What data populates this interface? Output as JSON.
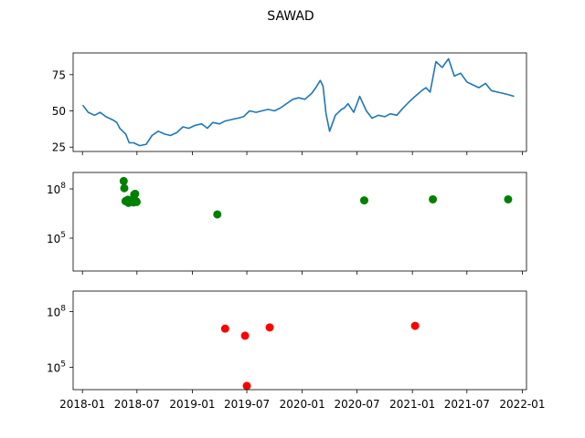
{
  "title": "SAWAD",
  "colors": {
    "price": "#1f77b4",
    "buy": "#008000",
    "sell": "#ff0000",
    "axis": "#000000"
  },
  "x_tick_labels": [
    "2018-01",
    "2018-07",
    "2019-01",
    "2019-07",
    "2020-01",
    "2020-07",
    "2021-01",
    "2021-07",
    "2022-01"
  ],
  "chart_data": [
    {
      "type": "line",
      "x_type": "date",
      "xlim": [
        "2017-12-01",
        "2022-01-15"
      ],
      "ylim": [
        22,
        90
      ],
      "yticks": [
        25,
        50,
        75
      ],
      "series": [
        {
          "x": [
            "2018-01-02",
            "2018-01-20",
            "2018-02-10",
            "2018-03-01",
            "2018-03-20",
            "2018-04-10",
            "2018-04-25",
            "2018-05-05",
            "2018-05-15",
            "2018-05-25",
            "2018-06-05",
            "2018-06-20",
            "2018-07-10",
            "2018-08-01",
            "2018-08-20",
            "2018-09-10",
            "2018-10-01",
            "2018-10-20",
            "2018-11-10",
            "2018-12-01",
            "2018-12-20",
            "2019-01-10",
            "2019-02-01",
            "2019-02-20",
            "2019-03-10",
            "2019-04-01",
            "2019-04-20",
            "2019-05-10",
            "2019-06-01",
            "2019-06-20",
            "2019-07-10",
            "2019-08-01",
            "2019-08-20",
            "2019-09-10",
            "2019-10-01",
            "2019-10-20",
            "2019-11-10",
            "2019-12-01",
            "2019-12-20",
            "2020-01-10",
            "2020-02-01",
            "2020-02-15",
            "2020-03-01",
            "2020-03-10",
            "2020-03-20",
            "2020-04-01",
            "2020-04-20",
            "2020-05-10",
            "2020-05-20",
            "2020-06-01",
            "2020-06-20",
            "2020-07-10",
            "2020-08-01",
            "2020-08-20",
            "2020-09-10",
            "2020-10-01",
            "2020-10-20",
            "2020-11-10",
            "2020-12-01",
            "2020-12-20",
            "2021-01-10",
            "2021-02-01",
            "2021-02-15",
            "2021-03-01",
            "2021-03-20",
            "2021-04-10",
            "2021-05-01",
            "2021-05-20",
            "2021-06-10",
            "2021-07-01",
            "2021-07-20",
            "2021-08-10",
            "2021-09-01",
            "2021-09-20",
            "2021-10-10",
            "2021-11-01",
            "2021-11-20",
            "2021-12-05"
          ],
          "y": [
            54,
            49,
            47,
            49,
            46,
            44,
            42,
            38,
            36,
            34,
            28,
            28,
            26,
            27,
            33,
            36,
            34,
            33,
            35,
            39,
            38,
            40,
            41,
            38,
            42,
            41,
            43,
            44,
            45,
            46,
            50,
            49,
            50,
            51,
            50,
            52,
            55,
            58,
            59,
            58,
            62,
            66,
            71,
            67,
            48,
            36,
            47,
            51,
            52,
            55,
            49,
            60,
            50,
            45,
            47,
            46,
            48,
            47,
            52,
            56,
            60,
            64,
            66,
            63,
            84,
            80,
            86,
            74,
            76,
            70,
            68,
            66,
            69,
            64,
            63,
            62,
            61,
            60
          ]
        }
      ]
    },
    {
      "type": "scatter",
      "x_type": "date",
      "yscale": "log",
      "xlim": [
        "2017-12-01",
        "2022-01-15"
      ],
      "ylim_exp": [
        3,
        9
      ],
      "yticks_exp": [
        5,
        8
      ],
      "series": [
        {
          "x": [
            "2018-05-18",
            "2018-05-20",
            "2018-05-24",
            "2018-06-01",
            "2018-06-03",
            "2018-06-08",
            "2018-06-12",
            "2018-06-16",
            "2018-06-20",
            "2018-06-22",
            "2018-06-25",
            "2018-06-28",
            "2018-06-30",
            "2019-03-25",
            "2020-07-25",
            "2021-03-10",
            "2021-11-15"
          ],
          "y": [
            300000000,
            110000000,
            18000000,
            22000000,
            14000000,
            20000000,
            19000000,
            16000000,
            15000000,
            45000000,
            50000000,
            18000000,
            16000000,
            2800000,
            20000000,
            23000000,
            23000000
          ]
        }
      ]
    },
    {
      "type": "scatter",
      "x_type": "date",
      "yscale": "log",
      "xlim": [
        "2017-12-01",
        "2022-01-15"
      ],
      "ylim_exp": [
        3.8,
        9.1
      ],
      "yticks_exp": [
        5,
        8
      ],
      "series": [
        {
          "x": [
            "2019-04-20",
            "2019-06-25",
            "2019-07-01",
            "2019-09-15",
            "2021-01-10"
          ],
          "y": [
            12000000,
            5000000,
            10000,
            14000000,
            17000000
          ]
        }
      ]
    }
  ]
}
